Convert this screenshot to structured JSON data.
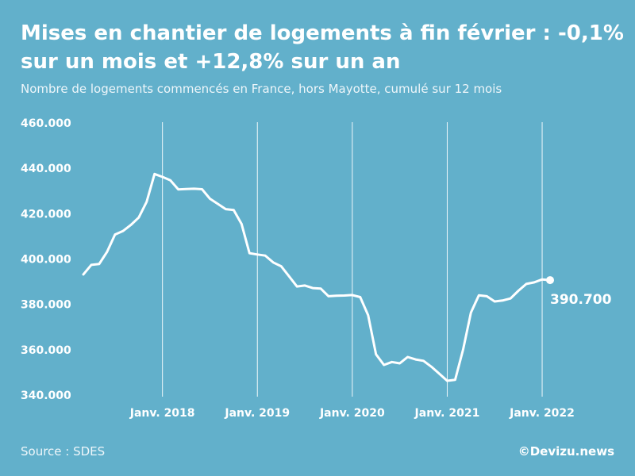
{
  "title": "Mises en chantier de logements à fin février : -0,1% sur un mois et +12,8% sur un an",
  "subtitle": "Nombre de logements commencés en France, hors Mayotte, cumulé sur 12 mois",
  "source": "Source : SDES",
  "brand": "©Devizu.news",
  "colors": {
    "background": "#62b0cb",
    "line": "#ffffff",
    "text": "#ffffff"
  },
  "chart_data": {
    "type": "line",
    "title": "Mises en chantier de logements à fin février : -0,1% sur un mois et +12,8% sur un an",
    "subtitle": "Nombre de logements commencés en France, hors Mayotte, cumulé sur 12 mois",
    "x_tick_labels": [
      "Janv. 2018",
      "Janv. 2019",
      "Janv. 2020",
      "Janv. 2021",
      "Janv. 2022"
    ],
    "y_tick_labels": [
      "460.000",
      "440.000",
      "420.000",
      "400.000",
      "380.000",
      "360.000",
      "340.000"
    ],
    "ylim": [
      340000,
      460000
    ],
    "grid": "vertical lines at each January",
    "series": [
      {
        "x": [
          "2017-03",
          "2017-04",
          "2017-05",
          "2017-06",
          "2017-07",
          "2017-08",
          "2017-09",
          "2017-10",
          "2017-11",
          "2017-12",
          "2018-01",
          "2018-02",
          "2018-03",
          "2018-04",
          "2018-05",
          "2018-06",
          "2018-07",
          "2018-08",
          "2018-09",
          "2018-10",
          "2018-11",
          "2018-12",
          "2019-01",
          "2019-02",
          "2019-03",
          "2019-04",
          "2019-05",
          "2019-06",
          "2019-07",
          "2019-08",
          "2019-09",
          "2019-10",
          "2019-11",
          "2019-12",
          "2020-01",
          "2020-02",
          "2020-03",
          "2020-04",
          "2020-05",
          "2020-06",
          "2020-07",
          "2020-08",
          "2020-09",
          "2020-10",
          "2020-11",
          "2020-12",
          "2021-01",
          "2021-02",
          "2021-03",
          "2021-04",
          "2021-05",
          "2021-06",
          "2021-07",
          "2021-08",
          "2021-09",
          "2021-10",
          "2021-11",
          "2021-12",
          "2022-01",
          "2022-02"
        ],
        "values": [
          393200,
          397400,
          397800,
          403200,
          410800,
          412300,
          415000,
          418300,
          425200,
          437500,
          436200,
          434700,
          430700,
          430900,
          431000,
          430800,
          426600,
          424300,
          422000,
          421600,
          415500,
          402600,
          402000,
          401500,
          398500,
          396800,
          392400,
          387900,
          388300,
          387200,
          387000,
          383600,
          383800,
          383900,
          384100,
          383200,
          375200,
          358000,
          353300,
          354600,
          354000,
          356800,
          355700,
          355100,
          352500,
          349400,
          346300,
          346700,
          360000,
          376400,
          384000,
          383600,
          381300,
          381700,
          382600,
          386000,
          389000,
          389700,
          391000,
          390700
        ]
      }
    ],
    "last_value_label": "390.700"
  }
}
